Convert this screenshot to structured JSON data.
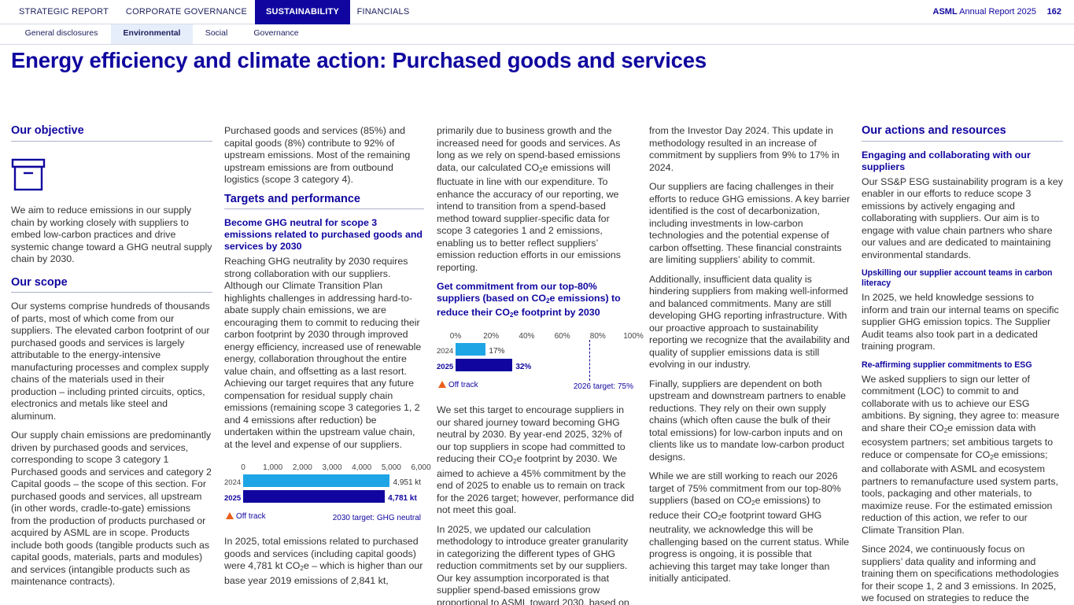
{
  "nav": {
    "tabs": [
      "STRATEGIC REPORT",
      "CORPORATE GOVERNANCE",
      "SUSTAINABILITY",
      "FINANCIALS"
    ],
    "active_tab": "SUSTAINABILITY",
    "report_brand": "ASML",
    "report_title": "Annual Report 2025",
    "page_number": "162",
    "subtabs": [
      "General disclosures",
      "Environmental",
      "Social",
      "Governance"
    ],
    "active_subtab": "Environmental"
  },
  "page_title": "Energy efficiency and climate action: Purchased goods and services",
  "col1": {
    "objective_heading": "Our objective",
    "objective_icon": "archive-box-icon",
    "objective_text": "We aim to reduce emissions in our supply chain by working closely with suppliers to embed low-carbon practices and drive systemic change toward a GHG neutral supply chain by 2030.",
    "scope_heading": "Our scope",
    "scope_p1": "Our systems comprise hundreds of thousands of parts, most of which come from our suppliers. The elevated carbon footprint of our purchased goods and services is largely attributable to the energy-intensive manufacturing processes and complex supply chains of the materials used in their production – including printed circuits, optics, electronics and metals like steel and aluminum.",
    "scope_p2": "Our supply chain emissions are predominantly driven by purchased goods and services, corresponding to scope 3 category 1 Purchased goods and services and category 2 Capital goods – the scope of this section. For purchased goods and services, all upstream (in other words, cradle-to-gate) emissions from the production of products purchased or acquired by ASML are in scope. Products include both goods (tangible products such as capital goods, materials, parts and modules) and services (intangible products such as maintenance contracts)."
  },
  "col2": {
    "intro": "Purchased goods and services (85%) and capital goods (8%) contribute to 92% of upstream emissions. Most of the remaining upstream emissions are from outbound logistics (scope 3 category 4).",
    "targets_heading": "Targets and performance",
    "target_title": "Become GHG neutral for scope 3 emissions related to purchased goods and services by 2030",
    "target_text": "Reaching GHG neutrality by 2030 requires strong collaboration with our suppliers. Although our Climate Transition Plan highlights challenges in addressing hard-to-abate supply chain emissions, we are encouraging them to commit to reducing their carbon footprint by 2030 through improved energy efficiency, increased use of renewable energy, collaboration throughout the entire value chain, and offsetting as a last resort. Achieving our target requires that any future compensation for residual supply chain emissions (remaining scope 3 categories 1, 2 and 4 emissions after reduction) be undertaken within the upstream value chain, at the level and expense of our suppliers.",
    "results_pre": "In 2025, total emissions related to purchased goods and services (including capital goods) were 4,781 kt CO",
    "results_sub": "2",
    "results_post": "e – which is higher than our base year 2019 emissions of 2,841 kt,"
  },
  "col3": {
    "p1_a": "primarily due to business growth and the increased need for goods and services. As long as we rely on spend-based emissions data, our calculated CO",
    "p1_sub": "2",
    "p1_b": "e emissions will fluctuate in line with our expenditure. To enhance the accuracy of our reporting, we intend to transition from a spend-based method toward supplier-specific data for scope 3 categories 1 and 2 emissions, enabling us to better reflect suppliers’ emission reduction efforts in our emissions reporting.",
    "target2_a": "Get commitment from our top-80% suppliers (based on CO",
    "target2_sub": "2",
    "target2_b": "e emissions) to reduce their CO",
    "target2_c": "e footprint by 2030",
    "p2_a": "We set this target to encourage suppliers in our shared journey toward becoming GHG neutral by 2030. By year-end 2025, 32% of our top suppliers in scope had committed to reducing their CO",
    "p2_sub": "2",
    "p2_b": "e footprint by 2030. We aimed to achieve a 45% commitment by the end of 2025 to enable us to remain on track for the 2026 target; however, performance did not meet this goal.",
    "p3": "In 2025, we updated our calculation methodology to introduce greater granularity in categorizing the different types of GHG reduction commitments set by our suppliers. Our key assumption incorporated is that supplier spend-based emissions grow proportional to ASML toward 2030, based on the sales and gross margin guidance"
  },
  "col4": {
    "p1": "from the Investor Day 2024. This update in methodology resulted in an increase of commitment by suppliers from 9% to 17% in 2024.",
    "p2": "Our suppliers are facing challenges in their efforts to reduce GHG emissions. A key barrier identified is the cost of decarbonization, including investments in low-carbon technologies and the potential expense of carbon offsetting. These financial constraints are limiting suppliers’ ability to commit.",
    "p3": "Additionally, insufficient data quality is hindering suppliers from making well-informed and balanced commitments. Many are still developing GHG reporting infrastructure. With our proactive approach to sustainability reporting we recognize that the availability and quality of supplier emissions data is still evolving in our industry.",
    "p4": "Finally, suppliers are dependent on both upstream and downstream partners to enable reductions. They rely on their own supply chains (which often cause the bulk of their total emissions) for low-carbon inputs and on clients like us to mandate low-carbon product designs.",
    "p5_a": "While we are still working to reach our 2026 target of 75% commitment from our top-80% suppliers (based on CO",
    "p5_sub": "2",
    "p5_b": "e emissions) to reduce their CO",
    "p5_c": "e footprint toward GHG neutrality, we acknowledge this will be challenging based on the current status. While progress is ongoing, it is possible that achieving this target may take longer than initially anticipated."
  },
  "col5": {
    "actions_heading": "Our actions and resources",
    "engage_title": "Engaging and collaborating with our suppliers",
    "engage_text": "Our SS&P ESG sustainability program is a key enabler in our efforts to reduce scope 3 emissions by actively engaging and collaborating with suppliers. Our aim is to engage with value chain partners who share our values and are dedicated to maintaining environmental standards.",
    "upskill_title": "Upskilling our supplier account teams in carbon literacy",
    "upskill_text": "In 2025, we held knowledge sessions to inform and train our internal teams on specific supplier GHG emission topics. The Supplier Audit teams also took part in a dedicated training program.",
    "reaffirm_title": "Re-affirming supplier commitments to ESG",
    "reaffirm_a": "We asked suppliers to sign our letter of commitment (LOC) to commit to and collaborate with us to achieve our ESG ambitions. By signing, they agree to: measure and share their CO",
    "reaffirm_sub": "2",
    "reaffirm_b": "e emission data with ecosystem partners; set ambitious targets to reduce or compensate for CO",
    "reaffirm_c": "e emissions; and collaborate with ASML and ecosystem partners to remanufacture used system parts, tools, packaging and other materials, to maximize reuse. For the estimated emission reduction of this action, we refer to our Climate Transition Plan.",
    "since_text": "Since 2024, we continuously focus on suppliers’ data quality and informing and training them on specifications methodologies for their scope 1, 2 and 3 emissions. In 2025, we focused on strategies to reduce the"
  },
  "chart_data": [
    {
      "type": "bar",
      "orientation": "horizontal",
      "categories": [
        "2024",
        "2025"
      ],
      "values": [
        4951,
        4781
      ],
      "value_labels": [
        "4,951 kt",
        "4,781 kt"
      ],
      "xlim": [
        0,
        6000
      ],
      "ticks": [
        "0",
        "1,000",
        "2,000",
        "3,000",
        "4,000",
        "5,000",
        "6,000"
      ],
      "status": "Off track",
      "target_label": "2030 target: GHG neutral",
      "colors": {
        "prev": "#1ea5e6",
        "current": "#10069f",
        "status": "#e8601c"
      }
    },
    {
      "type": "bar",
      "orientation": "horizontal",
      "categories": [
        "2024",
        "2025"
      ],
      "values": [
        17,
        32
      ],
      "value_labels": [
        "17%",
        "32%"
      ],
      "xlim": [
        0,
        100
      ],
      "ticks": [
        "0%",
        "20%",
        "40%",
        "60%",
        "80%",
        "100%"
      ],
      "target_value": 75,
      "status": "Off track",
      "target_label": "2026 target: 75%",
      "colors": {
        "prev": "#1ea5e6",
        "current": "#10069f",
        "status": "#e8601c"
      }
    }
  ]
}
